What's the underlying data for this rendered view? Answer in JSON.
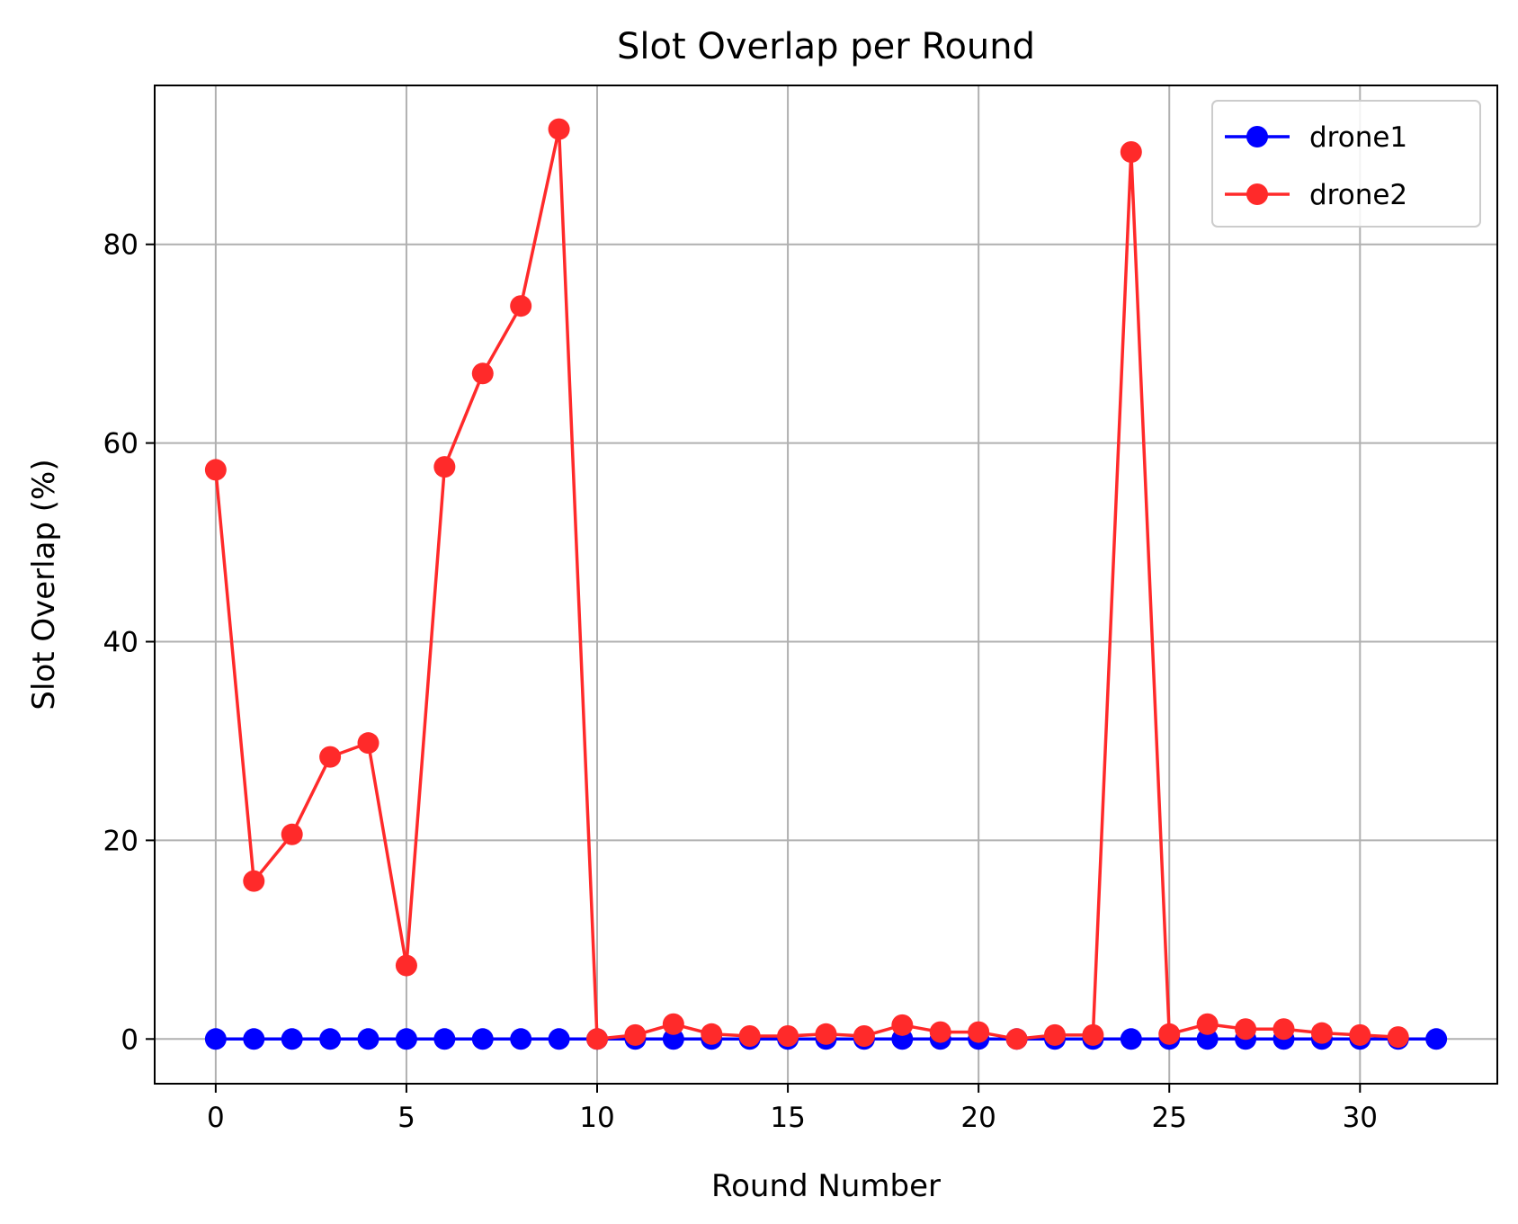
{
  "chart_data": {
    "type": "line",
    "title": "Slot Overlap per Round",
    "xlabel": "Round Number",
    "ylabel": "Slot Overlap (%)",
    "xlim": [
      -1.6,
      33.6
    ],
    "ylim": [
      -4.5,
      96.0
    ],
    "xticks": [
      0,
      5,
      10,
      15,
      20,
      25,
      30
    ],
    "yticks": [
      0,
      20,
      40,
      60,
      80
    ],
    "grid": true,
    "legend_position": "top-right",
    "series": [
      {
        "name": "drone1",
        "color": "#0000ff",
        "marker": "circle",
        "x": [
          0,
          1,
          2,
          3,
          4,
          5,
          6,
          7,
          8,
          9,
          10,
          11,
          12,
          13,
          14,
          15,
          16,
          17,
          18,
          19,
          20,
          21,
          22,
          23,
          24,
          25,
          26,
          27,
          28,
          29,
          30,
          31,
          32
        ],
        "y": [
          0,
          0,
          0,
          0,
          0,
          0,
          0,
          0,
          0,
          0,
          0,
          0,
          0,
          0,
          0,
          0,
          0,
          0,
          0,
          0,
          0,
          0,
          0,
          0,
          0,
          0,
          0,
          0,
          0,
          0,
          0,
          0,
          0
        ]
      },
      {
        "name": "drone2",
        "color": "#ff2a2a",
        "marker": "circle",
        "x": [
          0,
          1,
          2,
          3,
          4,
          5,
          6,
          7,
          8,
          9,
          10,
          11,
          12,
          13,
          14,
          15,
          16,
          17,
          18,
          19,
          20,
          21,
          22,
          23,
          24,
          25,
          26,
          27,
          28,
          29,
          30,
          31
        ],
        "y": [
          57.3,
          15.9,
          20.6,
          28.4,
          29.8,
          7.4,
          57.6,
          67.0,
          73.8,
          91.6,
          0.0,
          0.4,
          1.5,
          0.5,
          0.3,
          0.3,
          0.5,
          0.3,
          1.4,
          0.7,
          0.7,
          0.0,
          0.4,
          0.4,
          89.3,
          0.5,
          1.5,
          1.0,
          1.0,
          0.6,
          0.4,
          0.2
        ]
      }
    ]
  }
}
